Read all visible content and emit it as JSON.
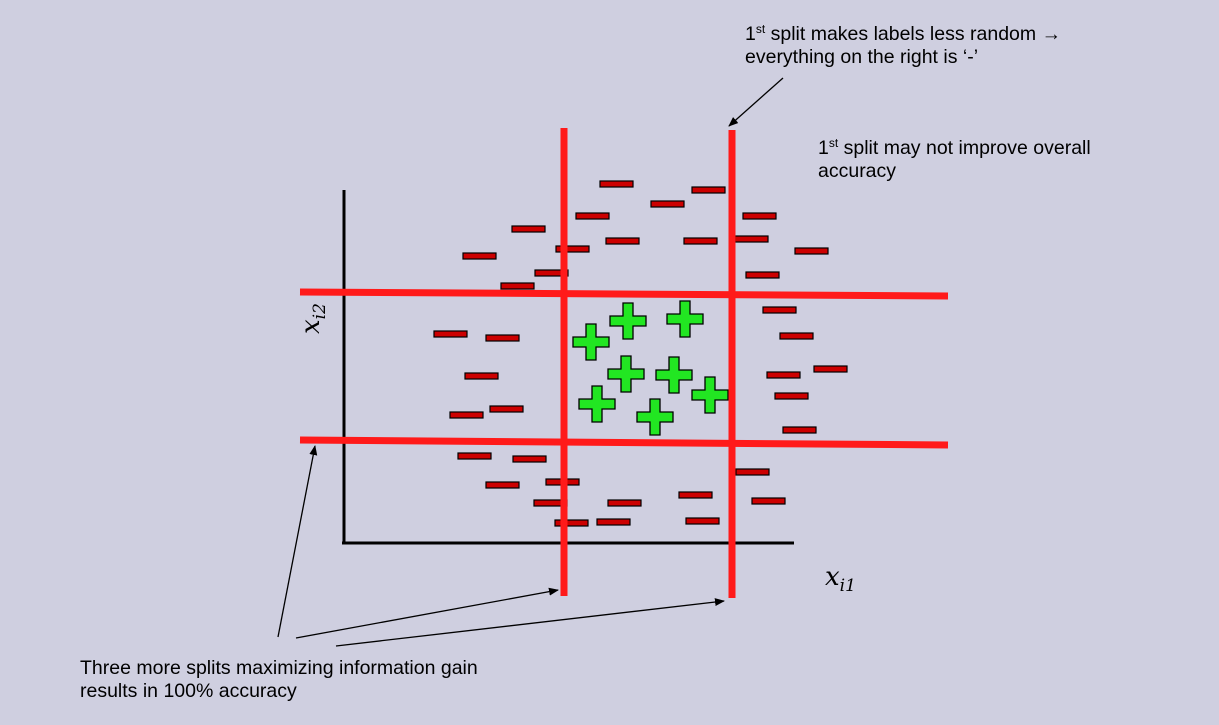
{
  "notes": {
    "top": {
      "ordinal": "1",
      "sup": "st",
      "line1_rest": " split makes labels less random →",
      "line2": "everything on the right  is ‘-’"
    },
    "right": {
      "ordinal": "1",
      "sup": "st",
      "line1_rest": " split may not improve  overall",
      "line2": "accuracy"
    },
    "bottom": {
      "line1": "Three more splits maximizing information gain",
      "line2": "results in 100% accuracy"
    }
  },
  "axes": {
    "x_label": {
      "var": "x",
      "sub": "i1"
    },
    "y_label": {
      "var": "x",
      "sub": "i2"
    }
  },
  "colors": {
    "background": "#cfcfe0",
    "split_line": "#ff1a1a",
    "minus_fill": "#cc0000",
    "plus_fill": "#22e622",
    "axis": "#000000"
  }
}
